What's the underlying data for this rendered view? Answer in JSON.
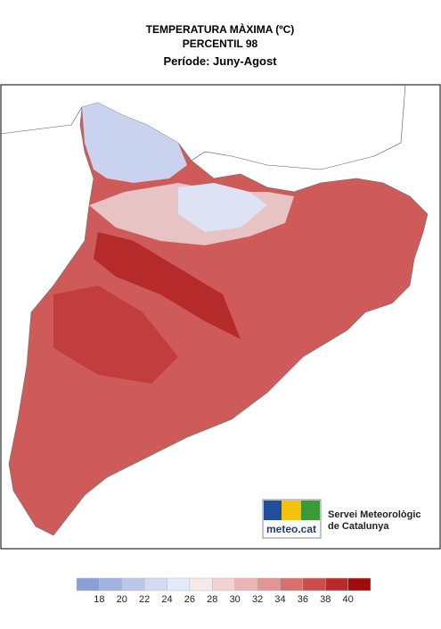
{
  "header": {
    "title": "TEMPERATURA MÀXIMA (ºC)",
    "subtitle": "PERCENTIL 98",
    "period": "Període: Juny-Agost"
  },
  "logo": {
    "brand": "meteo.cat",
    "line1": "Servei Meteorològic",
    "line2": "de Catalunya"
  },
  "legend": {
    "ticks": [
      18,
      20,
      22,
      24,
      26,
      28,
      30,
      32,
      34,
      36,
      38,
      40
    ],
    "colors": [
      "#8a9fd6",
      "#a3b3e0",
      "#bcc7e9",
      "#d3daf1",
      "#e6eaf7",
      "#f5eaea",
      "#f2d2d2",
      "#ecb5b5",
      "#e39494",
      "#d87070",
      "#cc4c4c",
      "#bb2a2a",
      "#a30b0b"
    ]
  }
}
